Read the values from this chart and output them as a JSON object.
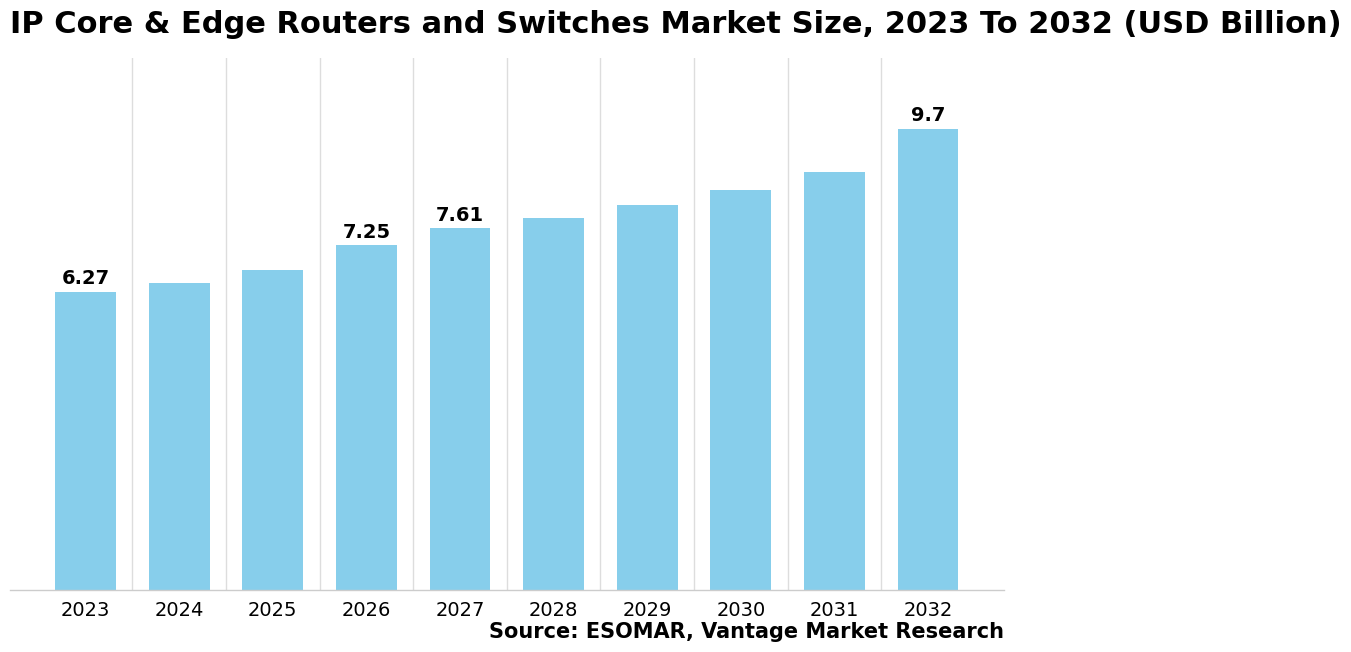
{
  "title": "IP Core & Edge Routers and Switches Market Size, 2023 To 2032 (USD Billion)",
  "categories": [
    "2023",
    "2024",
    "2025",
    "2026",
    "2027",
    "2028",
    "2029",
    "2030",
    "2031",
    "2032"
  ],
  "values": [
    6.27,
    6.46,
    6.72,
    7.25,
    7.61,
    7.82,
    8.1,
    8.42,
    8.78,
    9.7
  ],
  "bar_color": "#87CEEB",
  "label_values": [
    "6.27",
    null,
    null,
    "7.25",
    "7.61",
    null,
    null,
    null,
    null,
    "9.7"
  ],
  "background_color": "#ffffff",
  "source_text": "Source: ESOMAR, Vantage Market Research",
  "title_fontsize": 22,
  "tick_fontsize": 14,
  "label_fontsize": 14,
  "source_fontsize": 15,
  "ylim": [
    0,
    11.2
  ]
}
